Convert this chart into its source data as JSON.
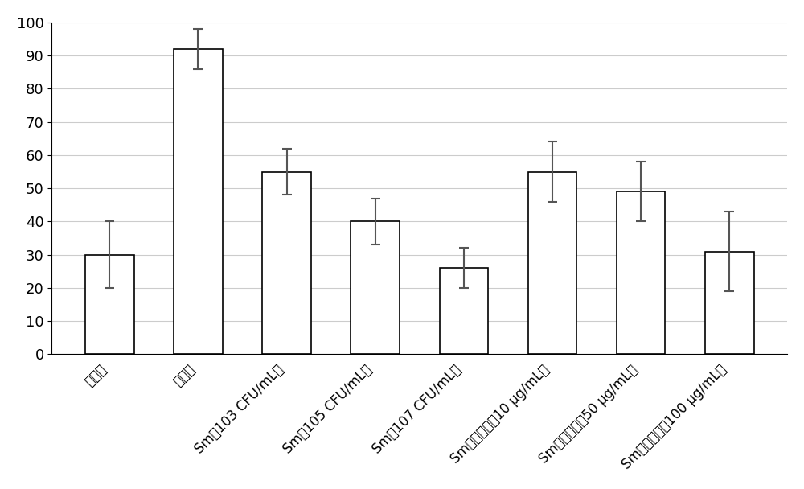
{
  "categories": [
    "呁嘱鉂",
    "灭菌水",
    "Sm（103 CFU/mL）",
    "Sm（105 CFU/mL）",
    "Sm（107 CFU/mL）",
    "Sm发酵产物（10 μg/mL）",
    "Sm发酵产物（50 μg/mL）",
    "Sm发酵产物（100 μg/mL）"
  ],
  "values": [
    30,
    92,
    55,
    40,
    26,
    55,
    49,
    31
  ],
  "errors": [
    10,
    6,
    7,
    7,
    6,
    9,
    9,
    12
  ],
  "bar_color": "#ffffff",
  "bar_edgecolor": "#000000",
  "error_color": "#555555",
  "ylim": [
    0,
    100
  ],
  "yticks": [
    0,
    10,
    20,
    30,
    40,
    50,
    60,
    70,
    80,
    90,
    100
  ],
  "grid_color": "#cccccc",
  "background_color": "#ffffff",
  "figure_background": "#ffffff"
}
